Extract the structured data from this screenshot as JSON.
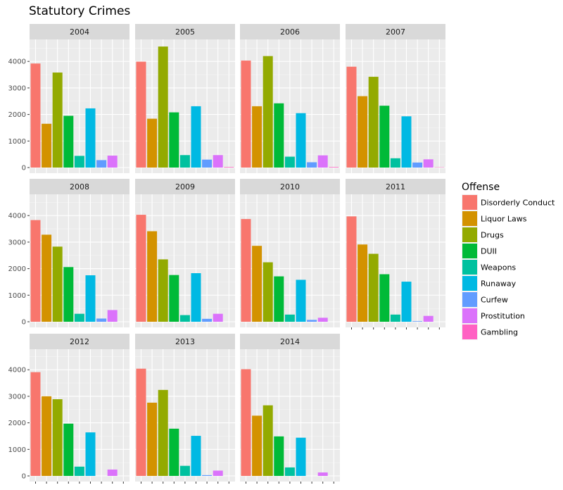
{
  "chart_data": {
    "type": "bar",
    "title": "Statutory Crimes",
    "legend_title": "Offense",
    "legend_position": "right",
    "grid": true,
    "ylim": [
      0,
      4700
    ],
    "y_ticks": [
      0,
      1000,
      2000,
      3000,
      4000
    ],
    "categories": [
      "Disorderly Conduct",
      "Liquor Laws",
      "Drugs",
      "DUII",
      "Weapons",
      "Runaway",
      "Curfew",
      "Prostitution",
      "Gambling"
    ],
    "colors": [
      "#F8766D",
      "#D39200",
      "#93AA00",
      "#00BA38",
      "#00C19F",
      "#00B9E3",
      "#619CFF",
      "#DB72FB",
      "#FF61C3"
    ],
    "panels": [
      {
        "year": "2004",
        "values": [
          3920,
          1650,
          3580,
          1950,
          440,
          2230,
          280,
          450,
          0
        ]
      },
      {
        "year": "2005",
        "values": [
          3990,
          1840,
          4560,
          2080,
          470,
          2310,
          300,
          470,
          20
        ]
      },
      {
        "year": "2006",
        "values": [
          4030,
          2310,
          4200,
          2420,
          410,
          2050,
          200,
          460,
          20
        ]
      },
      {
        "year": "2007",
        "values": [
          3800,
          2690,
          3420,
          2330,
          350,
          1930,
          190,
          310,
          10
        ]
      },
      {
        "year": "2008",
        "values": [
          3830,
          3280,
          2830,
          2060,
          300,
          1750,
          120,
          440,
          0
        ]
      },
      {
        "year": "2009",
        "values": [
          4030,
          3410,
          2350,
          1760,
          250,
          1830,
          110,
          300,
          0
        ]
      },
      {
        "year": "2010",
        "values": [
          3870,
          2860,
          2240,
          1710,
          270,
          1580,
          70,
          150,
          0
        ]
      },
      {
        "year": "2011",
        "values": [
          3970,
          2910,
          2560,
          1790,
          270,
          1510,
          20,
          220,
          0
        ]
      },
      {
        "year": "2012",
        "values": [
          3910,
          3000,
          2890,
          1970,
          350,
          1640,
          0,
          240,
          0
        ]
      },
      {
        "year": "2013",
        "values": [
          4040,
          2760,
          3240,
          1780,
          380,
          1510,
          30,
          200,
          0
        ]
      },
      {
        "year": "2014",
        "values": [
          4020,
          2270,
          2660,
          1490,
          320,
          1440,
          0,
          130,
          0
        ]
      }
    ]
  }
}
